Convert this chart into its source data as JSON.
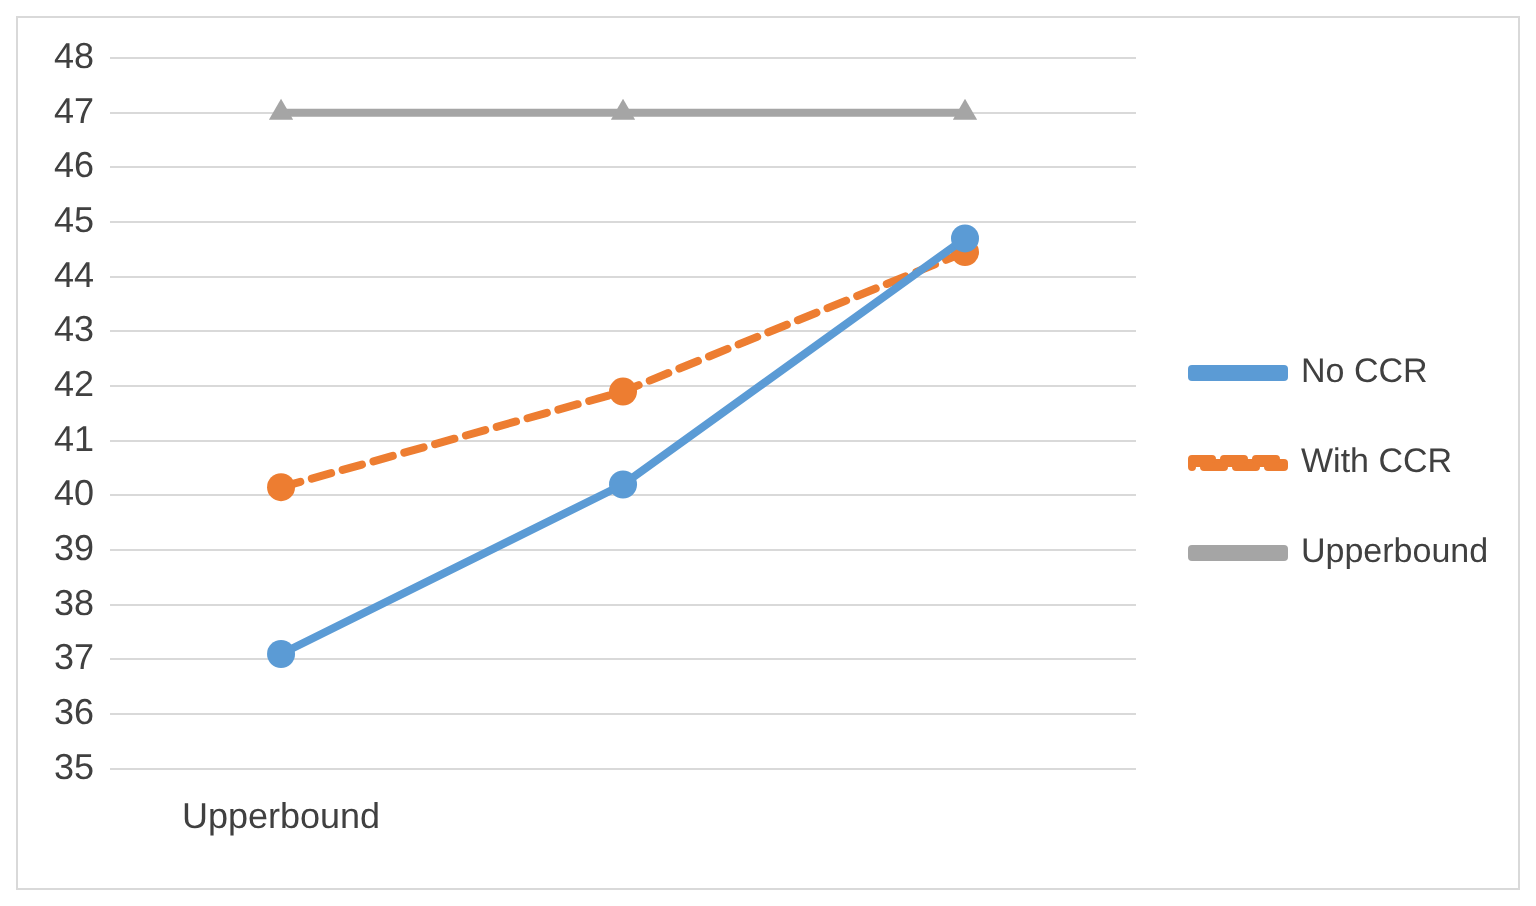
{
  "chart_data": {
    "type": "line",
    "categories": [
      "Upperbound",
      null,
      null
    ],
    "series": [
      {
        "name": "No CCR",
        "color": "#5b9bd5",
        "values": [
          37.1,
          40.2,
          44.7
        ],
        "marker": "circle",
        "line_style": "solid"
      },
      {
        "name": "With CCR",
        "color": "#ed7d31",
        "values": [
          40.15,
          41.9,
          44.45
        ],
        "marker": "circle",
        "line_style": "dashed"
      },
      {
        "name": "Upperbound",
        "color": "#a5a5a5",
        "values": [
          47,
          47,
          47
        ],
        "marker": "triangle",
        "line_style": "solid"
      }
    ],
    "ylim": [
      35,
      48
    ],
    "yticks": [
      35,
      36,
      37,
      38,
      39,
      40,
      41,
      42,
      43,
      44,
      45,
      46,
      47,
      48
    ],
    "grid": "y",
    "legend": "right"
  }
}
